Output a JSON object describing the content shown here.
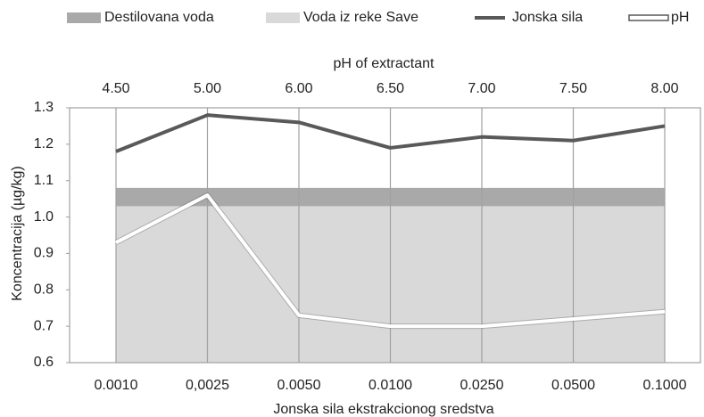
{
  "chart_data": {
    "type": "line",
    "title_top_axis": "pH of extractant",
    "xlabel": "Jonska sila ekstrakcionog sredstva",
    "ylabel": "Koncentracija (µg/kg)",
    "categories": [
      "0.0010",
      "0,0025",
      "0.0050",
      "0.0100",
      "0.0250",
      "0.0500",
      "0.1000"
    ],
    "top_categories": [
      "4.50",
      "5.00",
      "6.00",
      "6.50",
      "7.00",
      "7.50",
      "8.00"
    ],
    "ylim": [
      0.6,
      1.3
    ],
    "yticks": [
      0.6,
      0.7,
      0.8,
      0.9,
      {
        "value": 1,
        "label": "1.0"
      },
      1.1,
      1.2,
      1.3
    ],
    "legend": "top",
    "series": [
      {
        "name": "Destilovana voda",
        "kind": "area",
        "color": "#a9a9a9",
        "values": [
          1.08,
          1.08,
          1.08,
          1.08,
          1.08,
          1.08,
          1.08
        ]
      },
      {
        "name": "Voda iz reke Save",
        "kind": "area",
        "color": "#d9d9d9",
        "values": [
          1.03,
          1.03,
          1.03,
          1.03,
          1.03,
          1.03,
          1.03
        ]
      },
      {
        "name": "Jonska sila",
        "kind": "line",
        "color": "#595959",
        "values": [
          1.18,
          1.28,
          1.26,
          1.19,
          1.22,
          1.21,
          1.25
        ]
      },
      {
        "name": "pH",
        "kind": "outline",
        "color": "#ffffff",
        "outline": "#595959",
        "values": [
          0.93,
          1.06,
          0.73,
          0.7,
          0.7,
          0.72,
          0.74
        ]
      }
    ]
  }
}
